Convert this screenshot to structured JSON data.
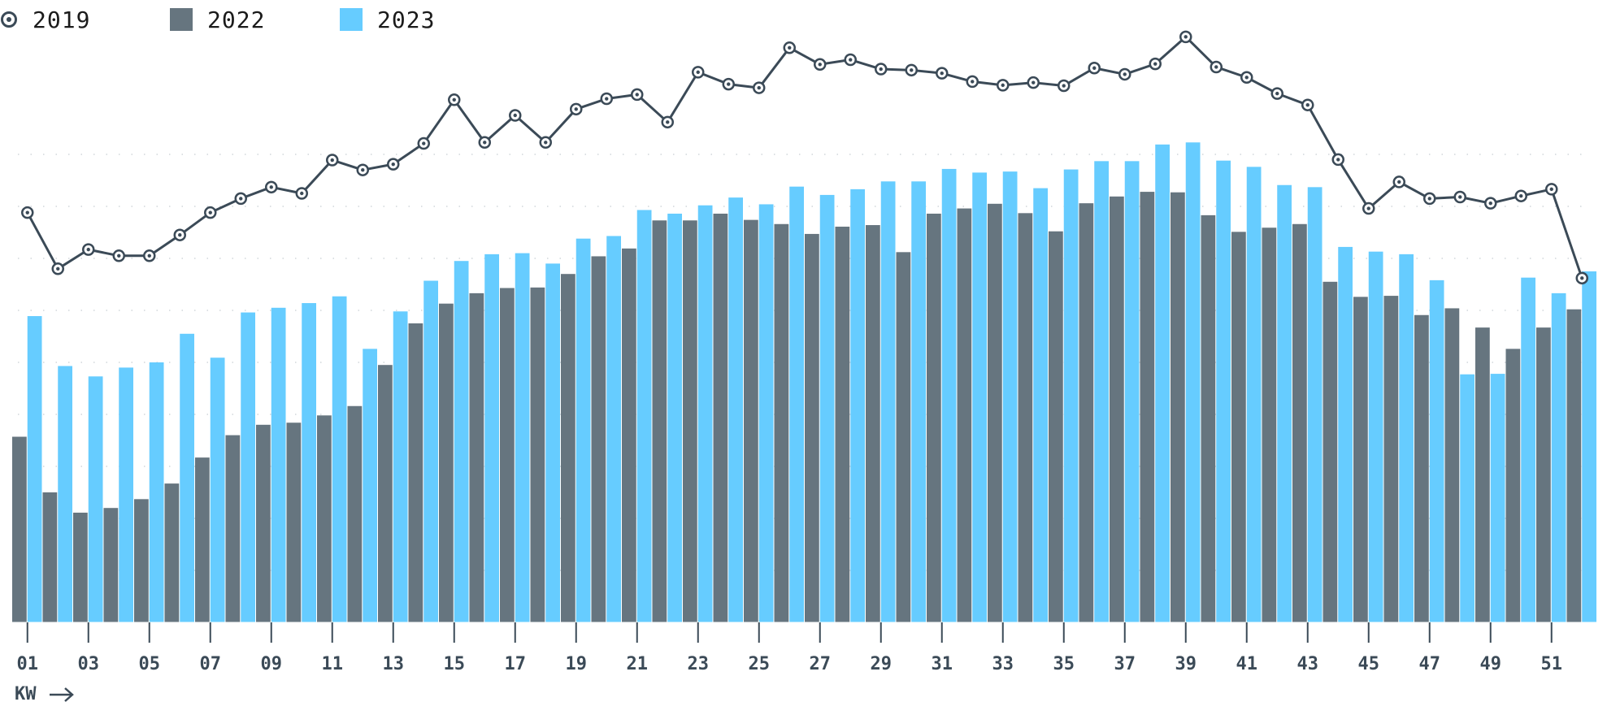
{
  "legend": {
    "series_2019": "2019",
    "series_2022": "2022",
    "series_2023": "2023",
    "marker_icon": "target-circle-icon"
  },
  "axis": {
    "x_title": "KW",
    "arrow_icon": "arrow-right-icon"
  },
  "colors": {
    "s2019": "#3b4a57",
    "s2022": "#66757f",
    "s2023": "#66ccff",
    "grid": "#c8ced3"
  },
  "chart_data": {
    "type": "bar",
    "xlabel": "KW",
    "ylabel": "",
    "grid": true,
    "legend_position": "top-left",
    "categories": [
      "01",
      "02",
      "03",
      "04",
      "05",
      "06",
      "07",
      "08",
      "09",
      "10",
      "11",
      "12",
      "13",
      "14",
      "15",
      "16",
      "17",
      "18",
      "19",
      "20",
      "21",
      "22",
      "23",
      "24",
      "25",
      "26",
      "27",
      "28",
      "29",
      "30",
      "31",
      "32",
      "33",
      "34",
      "35",
      "36",
      "37",
      "38",
      "39",
      "40",
      "41",
      "42",
      "43",
      "44",
      "45",
      "46",
      "47",
      "48",
      "49",
      "50",
      "51",
      "52"
    ],
    "tick_labels": [
      "01",
      "03",
      "05",
      "07",
      "09",
      "11",
      "13",
      "15",
      "17",
      "19",
      "21",
      "23",
      "25",
      "27",
      "29",
      "31",
      "33",
      "35",
      "37",
      "39",
      "41",
      "43",
      "45",
      "47",
      "49",
      "51"
    ],
    "ylim": [
      0,
      12
    ],
    "series": [
      {
        "name": "2019",
        "kind": "line",
        "values": [
          7.88,
          6.8,
          7.17,
          7.05,
          7.05,
          7.45,
          7.88,
          8.15,
          8.37,
          8.25,
          8.89,
          8.7,
          8.81,
          9.21,
          10.05,
          9.23,
          9.75,
          9.23,
          9.87,
          10.07,
          10.15,
          9.62,
          10.58,
          10.35,
          10.28,
          11.05,
          10.73,
          10.82,
          10.64,
          10.62,
          10.56,
          10.4,
          10.33,
          10.38,
          10.32,
          10.66,
          10.54,
          10.74,
          11.26,
          10.68,
          10.48,
          10.17,
          9.95,
          8.9,
          7.96,
          8.47,
          8.15,
          8.18,
          8.06,
          8.2,
          8.33,
          6.62
        ]
      },
      {
        "name": "2022",
        "kind": "bar",
        "values": [
          3.57,
          2.5,
          2.11,
          2.2,
          2.37,
          2.67,
          3.17,
          3.6,
          3.8,
          3.84,
          3.98,
          4.16,
          4.95,
          5.75,
          6.13,
          6.33,
          6.43,
          6.44,
          6.7,
          7.04,
          7.19,
          7.73,
          7.73,
          7.86,
          7.74,
          7.66,
          7.47,
          7.61,
          7.64,
          7.12,
          7.86,
          7.96,
          8.05,
          7.87,
          7.52,
          8.06,
          8.19,
          8.28,
          8.27,
          7.83,
          7.51,
          7.59,
          7.66,
          6.55,
          6.26,
          6.28,
          5.91,
          6.04,
          5.67,
          5.26,
          5.67,
          6.02
        ]
      },
      {
        "name": "2023",
        "kind": "bar",
        "values": [
          5.89,
          4.93,
          4.73,
          4.9,
          5.0,
          5.55,
          5.09,
          5.96,
          6.05,
          6.14,
          6.27,
          5.26,
          5.98,
          6.57,
          6.95,
          7.08,
          7.1,
          6.9,
          7.38,
          7.43,
          7.93,
          7.86,
          8.02,
          8.17,
          8.04,
          8.38,
          8.22,
          8.33,
          8.48,
          8.48,
          8.72,
          8.65,
          8.67,
          8.35,
          8.71,
          8.87,
          8.87,
          9.19,
          9.23,
          8.88,
          8.76,
          8.41,
          8.37,
          7.22,
          7.13,
          7.08,
          6.58,
          4.77,
          4.78,
          6.63,
          6.33,
          6.75
        ]
      }
    ]
  }
}
